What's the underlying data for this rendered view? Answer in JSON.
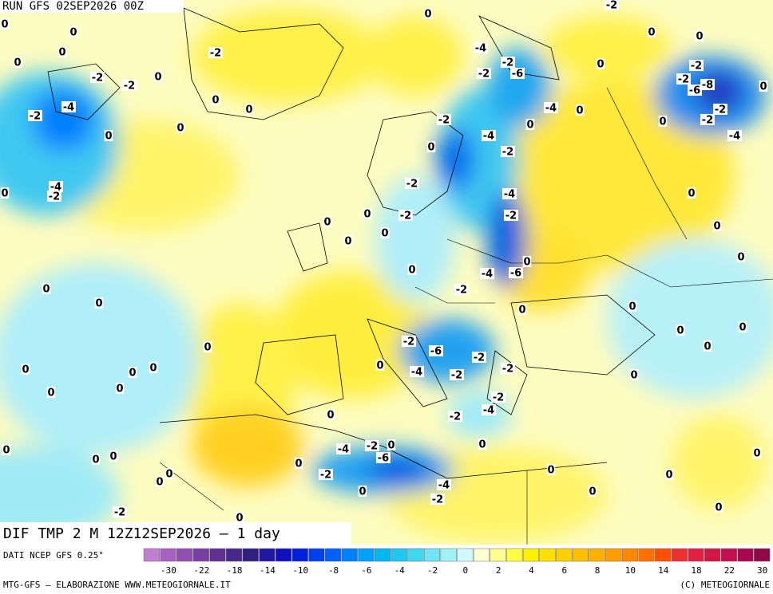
{
  "header": {
    "run": "RUN GFS 02SEP2026 00Z"
  },
  "map": {
    "title": "DIF TMP 2 M 12Z12SEP2026 — 1 day",
    "labels": [
      "0",
      "0",
      "0",
      "0",
      "-2",
      "-2",
      "0",
      "-2",
      "0",
      "0",
      "-4",
      "-2",
      "0",
      "0",
      "-4",
      "-2",
      "0",
      "0",
      "-4",
      "-2",
      "-6",
      "-4",
      "-2",
      "0",
      "0",
      "-2",
      "-4",
      "-2",
      "0",
      "-2",
      "-4",
      "-2",
      "-2",
      "0",
      "0",
      "0",
      "0",
      "0",
      "-4",
      "-6",
      "0",
      "-2",
      "0",
      "0",
      "-2",
      "0",
      "-2",
      "-2",
      "-8",
      "-6",
      "-2",
      "0",
      "-2",
      "0",
      "-4",
      "0",
      "0",
      "0",
      "0",
      "0",
      "0",
      "0",
      "0",
      "0",
      "0",
      "0",
      "0",
      "0",
      "0",
      "0",
      "-2",
      "-6",
      "-4",
      "-2",
      "-2",
      "-2",
      "-2",
      "-4",
      "-2",
      "0",
      "0",
      "0",
      "-4",
      "-2",
      "0",
      "-6",
      "-2",
      "-4",
      "-2",
      "0",
      "0",
      "0",
      "0",
      "0",
      "0",
      "0",
      "0",
      "0",
      "0",
      "0",
      "-2",
      "0",
      "0",
      "0",
      "0"
    ]
  },
  "legend": {
    "source": "DATI NCEP GFS 0.25°",
    "ticks": [
      -30,
      -22,
      -18,
      -14,
      -10,
      -8,
      -6,
      -4,
      -2,
      0,
      2,
      4,
      6,
      8,
      10,
      14,
      18,
      22,
      30
    ],
    "colors": [
      "#c080d0",
      "#a860c0",
      "#9050b0",
      "#7840a0",
      "#603090",
      "#482888",
      "#302080",
      "#2018a0",
      "#1010c0",
      "#0020e0",
      "#0040f0",
      "#0060ff",
      "#0080ff",
      "#00a0ff",
      "#00b8f0",
      "#20c8f0",
      "#40d8f0",
      "#70e4f4",
      "#a0f0f8",
      "#d0fafc",
      "#ffffd0",
      "#ffff90",
      "#ffff40",
      "#fff000",
      "#ffe000",
      "#ffd000",
      "#ffc000",
      "#ffb000",
      "#ffa000",
      "#ff8800",
      "#ff7000",
      "#ff5000",
      "#f03030",
      "#e02040",
      "#d01848",
      "#c01050",
      "#a80850",
      "#900848"
    ]
  },
  "footer": {
    "left": "MTG-GFS — ELABORAZIONE WWW.METEOGIORNALE.IT",
    "right": "(C) METEOGIORNALE"
  }
}
